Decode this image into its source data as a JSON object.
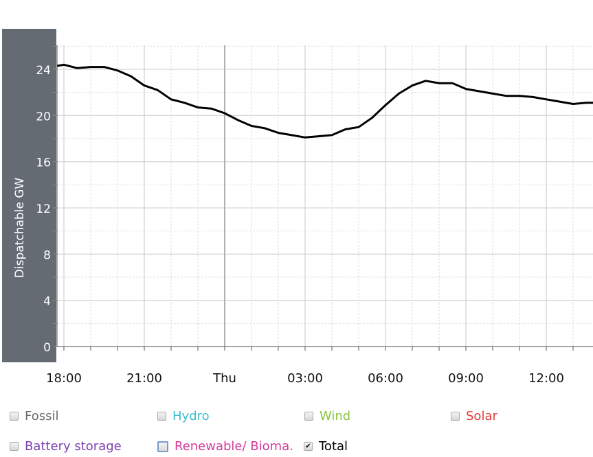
{
  "chart_data": {
    "type": "line",
    "ylabel": "Dispatchable GW",
    "xlabel": "",
    "ylim": [
      0,
      26
    ],
    "yticks": [
      "0",
      "4",
      "8",
      "12",
      "16",
      "20",
      "24"
    ],
    "xticks": [
      "18:00",
      "21:00",
      "Thu",
      "03:00",
      "06:00",
      "09:00",
      "12:00"
    ],
    "grid": true,
    "series": [
      {
        "name": "Total",
        "color": "#000000",
        "x": [
          "17:45",
          "18:00",
          "18:30",
          "19:00",
          "19:30",
          "20:00",
          "20:30",
          "21:00",
          "21:30",
          "22:00",
          "22:30",
          "23:00",
          "23:30",
          "00:00",
          "00:30",
          "01:00",
          "01:30",
          "02:00",
          "02:30",
          "03:00",
          "03:30",
          "04:00",
          "04:30",
          "05:00",
          "05:30",
          "06:00",
          "06:30",
          "07:00",
          "07:30",
          "08:00",
          "08:30",
          "09:00",
          "09:30",
          "10:00",
          "10:30",
          "11:00",
          "11:30",
          "12:00",
          "12:30",
          "13:00",
          "13:30",
          "13:45"
        ],
        "values": [
          24.3,
          24.4,
          24.1,
          24.2,
          24.2,
          23.9,
          23.4,
          22.6,
          22.2,
          21.4,
          21.1,
          20.7,
          20.6,
          20.2,
          19.6,
          19.1,
          18.9,
          18.5,
          18.3,
          18.1,
          18.2,
          18.3,
          18.8,
          19.0,
          19.8,
          20.9,
          21.9,
          22.6,
          23.0,
          22.8,
          22.8,
          22.3,
          22.1,
          21.9,
          21.7,
          21.7,
          21.6,
          21.4,
          21.2,
          21.0,
          21.1,
          21.1
        ]
      }
    ]
  },
  "legend": [
    {
      "label": "Fossil",
      "color": "#6b6b6b",
      "checked": false
    },
    {
      "label": "Hydro",
      "color": "#3bbfd0",
      "checked": false
    },
    {
      "label": "Wind",
      "color": "#8dc63f",
      "checked": false
    },
    {
      "label": "Solar",
      "color": "#e03a3a",
      "checked": false
    },
    {
      "label": "Battery storage",
      "color": "#7b3fb0",
      "checked": false
    },
    {
      "label": "Renewable/ Bioma.",
      "color": "#d63a9a",
      "checked": false
    },
    {
      "label": "Total",
      "color": "#000000",
      "checked": true
    }
  ]
}
